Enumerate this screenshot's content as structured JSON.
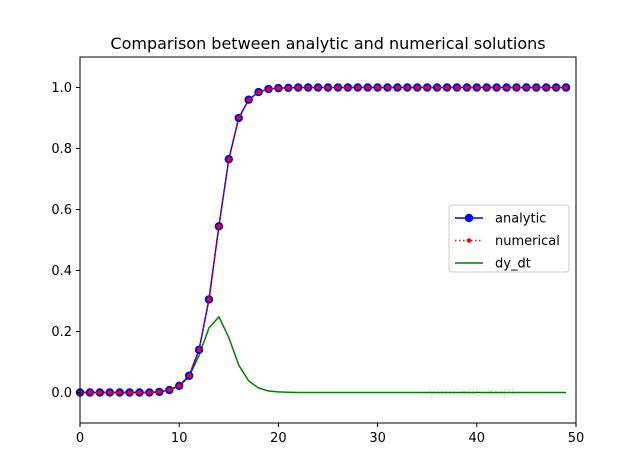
{
  "chart_data": {
    "type": "line",
    "title": "Comparison between analytic and numerical solutions",
    "xlabel": "",
    "ylabel": "",
    "xlim": [
      0,
      50
    ],
    "ylim": [
      -0.1,
      1.1
    ],
    "xticks": [
      0,
      10,
      20,
      30,
      40,
      50
    ],
    "yticks": [
      0.0,
      0.2,
      0.4,
      0.6,
      0.8,
      1.0
    ],
    "xtick_labels": [
      "0",
      "10",
      "20",
      "30",
      "40",
      "50"
    ],
    "ytick_labels": [
      "0.0",
      "0.2",
      "0.4",
      "0.6",
      "0.8",
      "1.0"
    ],
    "grid": false,
    "legend_position": "center-right",
    "watermark": "youcans-xupt",
    "x": [
      0,
      1,
      2,
      3,
      4,
      5,
      6,
      7,
      8,
      9,
      10,
      11,
      12,
      13,
      14,
      15,
      16,
      17,
      18,
      19,
      20,
      21,
      22,
      23,
      24,
      25,
      26,
      27,
      28,
      29,
      30,
      31,
      32,
      33,
      34,
      35,
      36,
      37,
      38,
      39,
      40,
      41,
      42,
      43,
      44,
      45,
      46,
      47,
      48,
      49
    ],
    "series": [
      {
        "name": "analytic",
        "color": "#0000ff",
        "style": "solid",
        "marker": "circle",
        "values": [
          0.0,
          0.0,
          0.0,
          0.0,
          0.0,
          0.0,
          0.0,
          0.0,
          0.002,
          0.008,
          0.022,
          0.055,
          0.14,
          0.305,
          0.545,
          0.765,
          0.9,
          0.96,
          0.985,
          0.995,
          0.998,
          0.999,
          1.0,
          1.0,
          1.0,
          1.0,
          1.0,
          1.0,
          1.0,
          1.0,
          1.0,
          1.0,
          1.0,
          1.0,
          1.0,
          1.0,
          1.0,
          1.0,
          1.0,
          1.0,
          1.0,
          1.0,
          1.0,
          1.0,
          1.0,
          1.0,
          1.0,
          1.0,
          1.0,
          1.0
        ]
      },
      {
        "name": "numerical",
        "color": "#ff0000",
        "style": "dotted",
        "marker": "dot",
        "values": [
          0.0,
          0.0,
          0.0,
          0.0,
          0.0,
          0.0,
          0.0,
          0.0,
          0.002,
          0.008,
          0.022,
          0.055,
          0.14,
          0.305,
          0.545,
          0.765,
          0.9,
          0.96,
          0.985,
          0.995,
          0.998,
          0.999,
          1.0,
          1.0,
          1.0,
          1.0,
          1.0,
          1.0,
          1.0,
          1.0,
          1.0,
          1.0,
          1.0,
          1.0,
          1.0,
          1.0,
          1.0,
          1.0,
          1.0,
          1.0,
          1.0,
          1.0,
          1.0,
          1.0,
          1.0,
          1.0,
          1.0,
          1.0,
          1.0,
          1.0
        ]
      },
      {
        "name": "dy_dt",
        "color": "#008000",
        "style": "solid",
        "marker": "none",
        "values": [
          0.0,
          0.0,
          0.0,
          0.0,
          0.0,
          0.0,
          0.0,
          0.0,
          0.002,
          0.008,
          0.021,
          0.052,
          0.122,
          0.212,
          0.248,
          0.18,
          0.09,
          0.038,
          0.015,
          0.005,
          0.002,
          0.001,
          0.0,
          0.0,
          0.0,
          0.0,
          0.0,
          0.0,
          0.0,
          0.0,
          0.0,
          0.0,
          0.0,
          0.0,
          0.0,
          0.0,
          0.0,
          0.0,
          0.0,
          0.0,
          0.0,
          0.0,
          0.0,
          0.0,
          0.0,
          0.0,
          0.0,
          0.0,
          0.0,
          0.0
        ]
      }
    ]
  }
}
